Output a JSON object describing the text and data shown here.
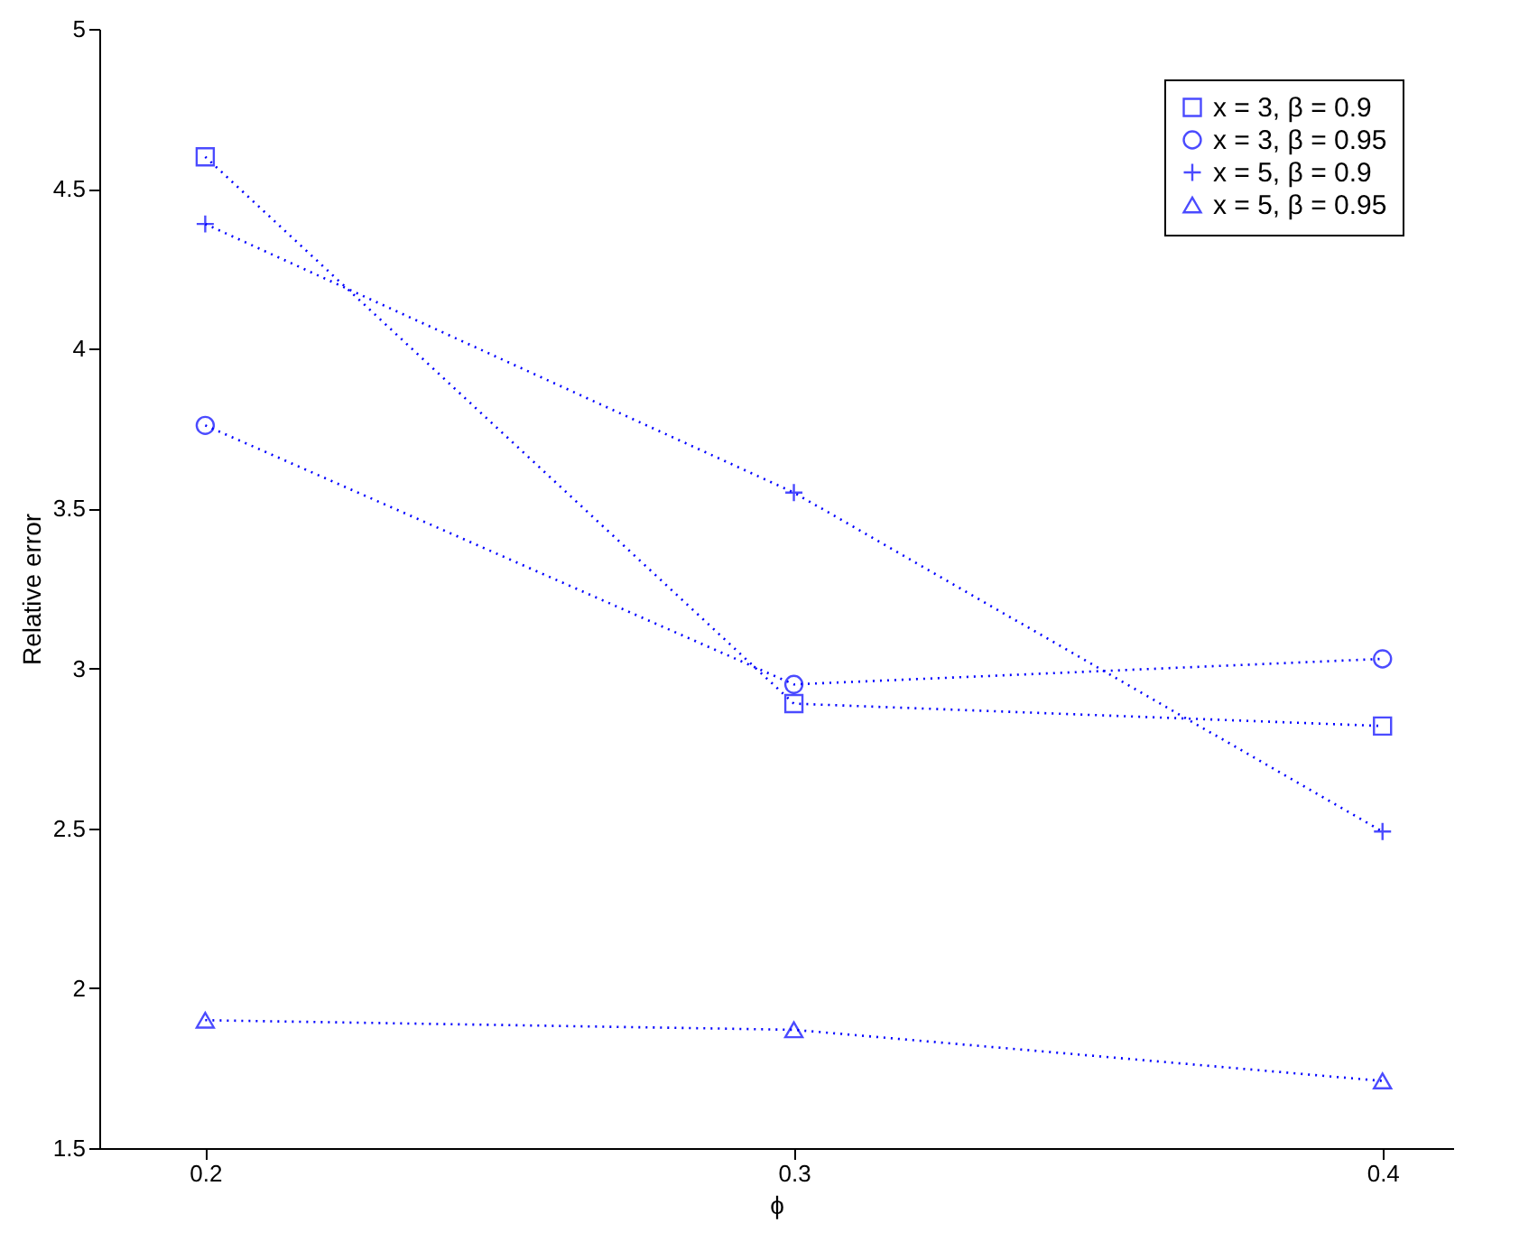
{
  "chart_data": {
    "type": "line",
    "xlabel": "ϕ",
    "ylabel": "Relative error",
    "x": [
      0.2,
      0.3,
      0.4
    ],
    "xlim": [
      0.182,
      0.412
    ],
    "xticks": [
      0.2,
      0.3,
      0.4
    ],
    "ylim": [
      1.5,
      5
    ],
    "yticks": [
      1.5,
      2,
      2.5,
      3,
      3.5,
      4,
      4.5,
      5
    ],
    "line_style": "dotted",
    "legend": "top right",
    "grid": false,
    "series": [
      {
        "name": "x = 3, β = 0.9",
        "color": "#0000ff",
        "marker": "square",
        "values": [
          4.6,
          2.89,
          2.82
        ]
      },
      {
        "name": "x = 3, β = 0.95",
        "color": "#0000ff",
        "marker": "circle",
        "values": [
          3.76,
          2.95,
          3.03
        ]
      },
      {
        "name": "x = 5, β = 0.9",
        "color": "#0000ff",
        "marker": "cross",
        "values": [
          4.39,
          3.55,
          2.49
        ]
      },
      {
        "name": "x = 5, β = 0.95",
        "color": "#0000ff",
        "marker": "triangle",
        "values": [
          1.9,
          1.87,
          1.71
        ]
      }
    ]
  }
}
